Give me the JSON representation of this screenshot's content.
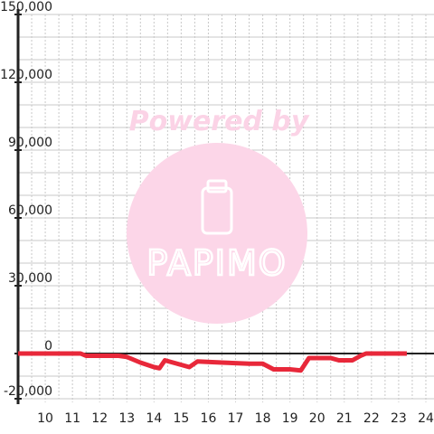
{
  "chart_data": {
    "type": "line",
    "watermark": {
      "text": "Powered by",
      "logo": "PAPIMO"
    },
    "x": [
      9,
      11.3,
      11.5,
      12.7,
      13.0,
      13.5,
      14.0,
      14.2,
      14.4,
      15.0,
      15.3,
      15.6,
      16.5,
      17.5,
      18.0,
      18.4,
      19.0,
      19.4,
      19.7,
      20.5,
      20.8,
      21.3,
      21.6,
      21.8,
      23.3
    ],
    "series": [
      {
        "color": "#e8283a",
        "values": [
          0,
          0,
          -1000,
          -1000,
          -1500,
          -4000,
          -6000,
          -6500,
          -3000,
          -5000,
          -6000,
          -3500,
          -4000,
          -4500,
          -4500,
          -7000,
          -7000,
          -7500,
          -2000,
          -2000,
          -3000,
          -3000,
          -1000,
          0,
          0
        ]
      }
    ],
    "xlim": [
      9,
      24.3
    ],
    "xticks": [
      10,
      11,
      12,
      13,
      14,
      15,
      16,
      17,
      18,
      19,
      20,
      21,
      22,
      23,
      24
    ],
    "x_minor_ticks": [
      9.5,
      10.5,
      11.5,
      12.5,
      13.5,
      14.5,
      15.5,
      16.5,
      17.5,
      18.5,
      19.5,
      20.5,
      21.5,
      22.5,
      23.5
    ],
    "ylim": [
      -20000,
      150000
    ],
    "yticks": [
      {
        "value": -20000,
        "label": "-20,000"
      },
      0,
      {
        "value": 30000,
        "label": "30,000"
      },
      {
        "value": 60000,
        "label": "60,000"
      },
      {
        "value": 90000,
        "label": "90,000"
      },
      {
        "value": 120000,
        "label": "120,000"
      },
      {
        "value": 150000,
        "label": "150,000"
      }
    ],
    "y_minor_ticks": [
      -10000,
      10000,
      20000,
      40000,
      50000,
      70000,
      80000,
      100000,
      110000,
      130000,
      140000
    ],
    "grid": true
  }
}
